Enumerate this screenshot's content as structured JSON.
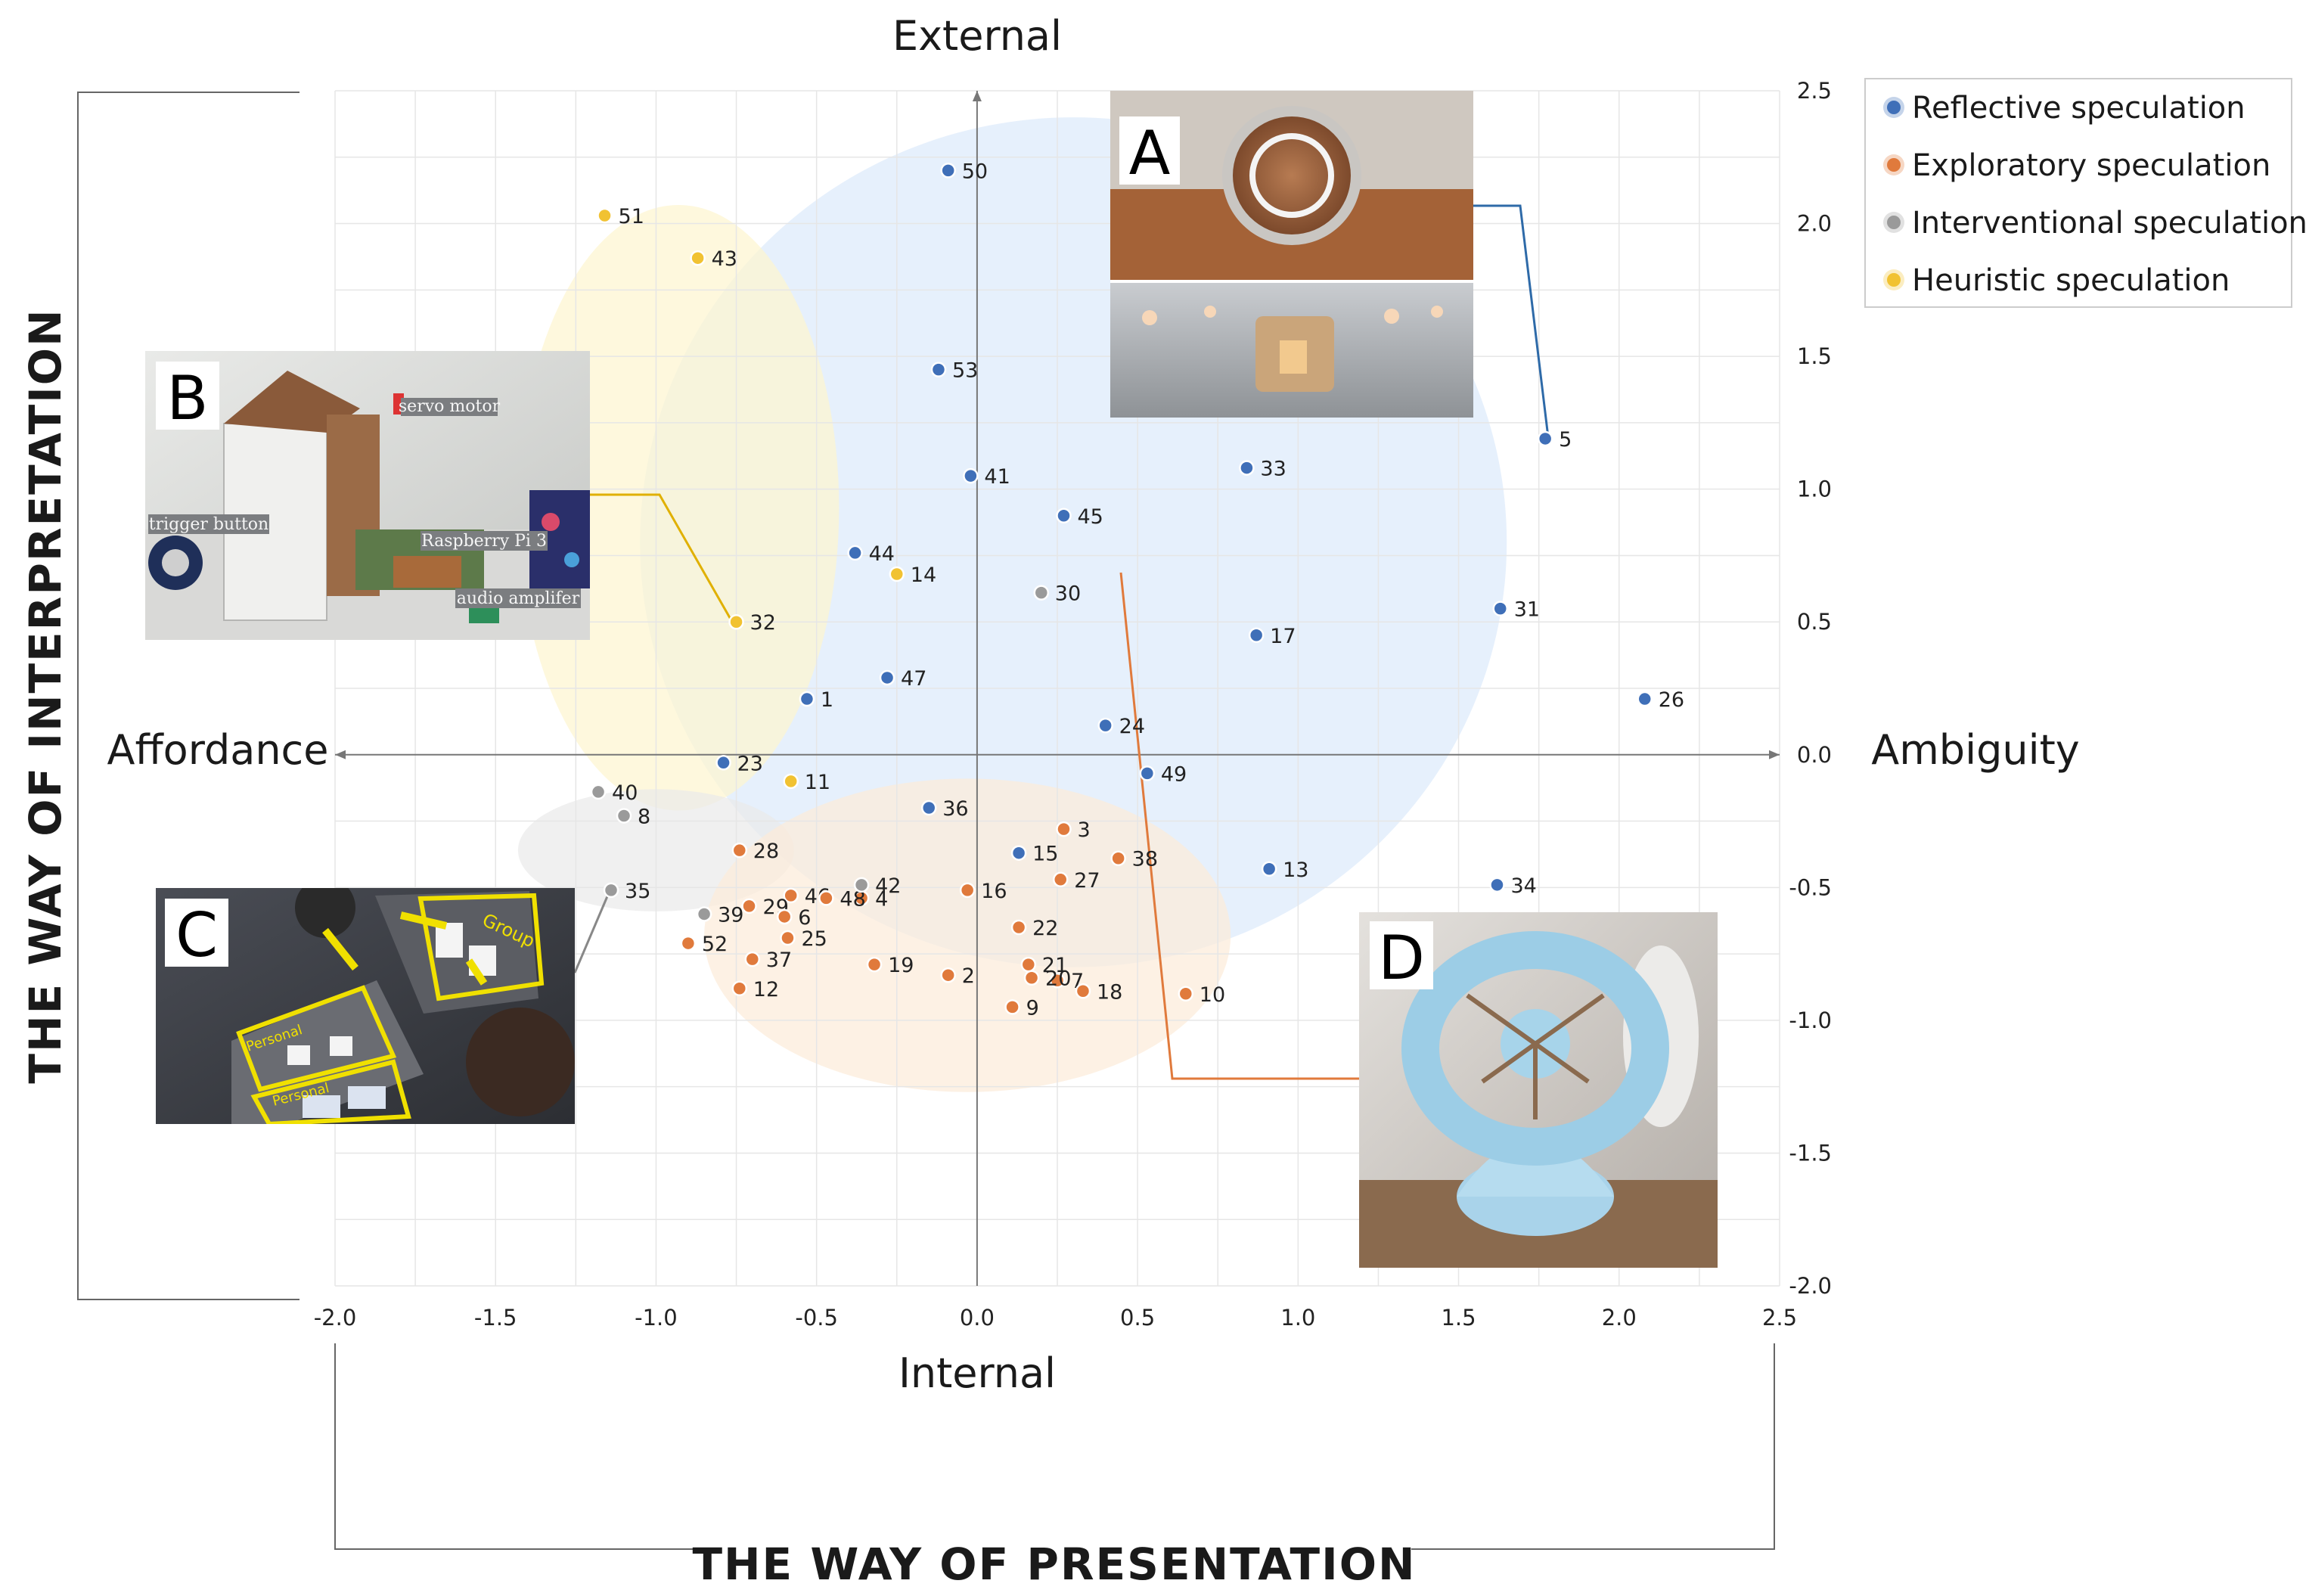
{
  "chart_data": {
    "type": "scatter",
    "xlim": [
      -2.0,
      2.5
    ],
    "ylim": [
      -2.0,
      2.5
    ],
    "x_ticks": [
      "-2.0",
      "-1.5",
      "-1.0",
      "-0.5",
      "0.0",
      "0.5",
      "1.0",
      "1.5",
      "2.0",
      "2.5"
    ],
    "y_ticks": [
      "2.5",
      "2.0",
      "1.5",
      "1.0",
      "0.5",
      "0.0",
      "-0.5",
      "-1.0",
      "-1.5",
      "-2.0"
    ],
    "grid": true,
    "legend_position": "top-right",
    "axis_words": {
      "top": "External",
      "bottom": "Internal",
      "left": "Affordance",
      "right": "Ambiguity"
    },
    "xlabel": "THE WAY OF PRESENTATION",
    "ylabel": "THE WAY OF INTERPRETATION",
    "series": [
      {
        "name": "Reflective speculation",
        "color": "#3f6fb8",
        "ellipse": {
          "cx": 0.3,
          "cy": 0.8,
          "rx": 1.35,
          "ry": 1.6
        },
        "ellipse_color": "#dce9fb",
        "points": [
          {
            "id": "50",
            "x": -0.09,
            "y": 2.2
          },
          {
            "id": "53",
            "x": -0.12,
            "y": 1.45
          },
          {
            "id": "5",
            "x": 1.77,
            "y": 1.19
          },
          {
            "id": "33",
            "x": 0.84,
            "y": 1.08
          },
          {
            "id": "41",
            "x": -0.02,
            "y": 1.05
          },
          {
            "id": "45",
            "x": 0.27,
            "y": 0.9
          },
          {
            "id": "44",
            "x": -0.38,
            "y": 0.76
          },
          {
            "id": "31",
            "x": 1.63,
            "y": 0.55
          },
          {
            "id": "17",
            "x": 0.87,
            "y": 0.45
          },
          {
            "id": "47",
            "x": -0.28,
            "y": 0.29
          },
          {
            "id": "1",
            "x": -0.53,
            "y": 0.21
          },
          {
            "id": "26",
            "x": 2.08,
            "y": 0.21
          },
          {
            "id": "24",
            "x": 0.4,
            "y": 0.11
          },
          {
            "id": "23",
            "x": -0.79,
            "y": -0.03
          },
          {
            "id": "49",
            "x": 0.53,
            "y": -0.07
          },
          {
            "id": "36",
            "x": -0.15,
            "y": -0.2
          },
          {
            "id": "15",
            "x": 0.13,
            "y": -0.37
          },
          {
            "id": "13",
            "x": 0.91,
            "y": -0.43
          },
          {
            "id": "34",
            "x": 1.62,
            "y": -0.49
          }
        ]
      },
      {
        "name": "Exploratory speculation",
        "color": "#e07a3c",
        "ellipse": {
          "cx": -0.03,
          "cy": -0.68,
          "rx": 0.82,
          "ry": 0.59
        },
        "ellipse_color": "#fcebd8",
        "points": [
          {
            "id": "3",
            "x": 0.27,
            "y": -0.28
          },
          {
            "id": "28",
            "x": -0.74,
            "y": -0.36
          },
          {
            "id": "38",
            "x": 0.44,
            "y": -0.39
          },
          {
            "id": "27",
            "x": 0.26,
            "y": -0.47
          },
          {
            "id": "16",
            "x": -0.03,
            "y": -0.51
          },
          {
            "id": "46",
            "x": -0.58,
            "y": -0.53
          },
          {
            "id": "4",
            "x": -0.36,
            "y": -0.54
          },
          {
            "id": "48",
            "x": -0.47,
            "y": -0.54
          },
          {
            "id": "29",
            "x": -0.71,
            "y": -0.57
          },
          {
            "id": "6",
            "x": -0.6,
            "y": -0.61
          },
          {
            "id": "22",
            "x": 0.13,
            "y": -0.65
          },
          {
            "id": "25",
            "x": -0.59,
            "y": -0.69
          },
          {
            "id": "52",
            "x": -0.9,
            "y": -0.71
          },
          {
            "id": "37",
            "x": -0.7,
            "y": -0.77
          },
          {
            "id": "19",
            "x": -0.32,
            "y": -0.79
          },
          {
            "id": "21",
            "x": 0.16,
            "y": -0.79
          },
          {
            "id": "2",
            "x": -0.09,
            "y": -0.83
          },
          {
            "id": "7",
            "x": 0.25,
            "y": -0.85
          },
          {
            "id": "20",
            "x": 0.17,
            "y": -0.84
          },
          {
            "id": "12",
            "x": -0.74,
            "y": -0.88
          },
          {
            "id": "18",
            "x": 0.33,
            "y": -0.89
          },
          {
            "id": "10",
            "x": 0.65,
            "y": -0.9
          },
          {
            "id": "9",
            "x": 0.11,
            "y": -0.95
          }
        ]
      },
      {
        "name": "Interventional speculation",
        "color": "#9a9a9a",
        "ellipse": {
          "cx": -1.0,
          "cy": -0.36,
          "rx": 0.43,
          "ry": 0.23
        },
        "ellipse_color": "#e9e9e9",
        "points": [
          {
            "id": "30",
            "x": 0.2,
            "y": 0.61
          },
          {
            "id": "40",
            "x": -1.18,
            "y": -0.14
          },
          {
            "id": "8",
            "x": -1.1,
            "y": -0.23
          },
          {
            "id": "42",
            "x": -0.36,
            "y": -0.49
          },
          {
            "id": "35",
            "x": -1.14,
            "y": -0.51
          },
          {
            "id": "39",
            "x": -0.85,
            "y": -0.6
          }
        ]
      },
      {
        "name": "Heuristic speculation",
        "color": "#f1c232",
        "ellipse": {
          "cx": -0.93,
          "cy": 0.93,
          "rx": 0.5,
          "ry": 1.14
        },
        "ellipse_color": "#fdf5cf",
        "points": [
          {
            "id": "51",
            "x": -1.16,
            "y": 2.03
          },
          {
            "id": "43",
            "x": -0.87,
            "y": 1.87
          },
          {
            "id": "14",
            "x": -0.25,
            "y": 0.68
          },
          {
            "id": "32",
            "x": -0.75,
            "y": 0.5
          },
          {
            "id": "11",
            "x": -0.58,
            "y": -0.1
          }
        ]
      }
    ],
    "insets": [
      {
        "letter": "A",
        "linked_point": "5"
      },
      {
        "letter": "B",
        "linked_point": "32",
        "labels": [
          "servo motor",
          "trigger button",
          "Raspberry Pi 3",
          "audio amplifer"
        ]
      },
      {
        "letter": "C",
        "linked_point": "35",
        "labels": [
          "Group",
          "Personal",
          "Personal"
        ]
      },
      {
        "letter": "D",
        "linked_point": "38"
      }
    ]
  }
}
